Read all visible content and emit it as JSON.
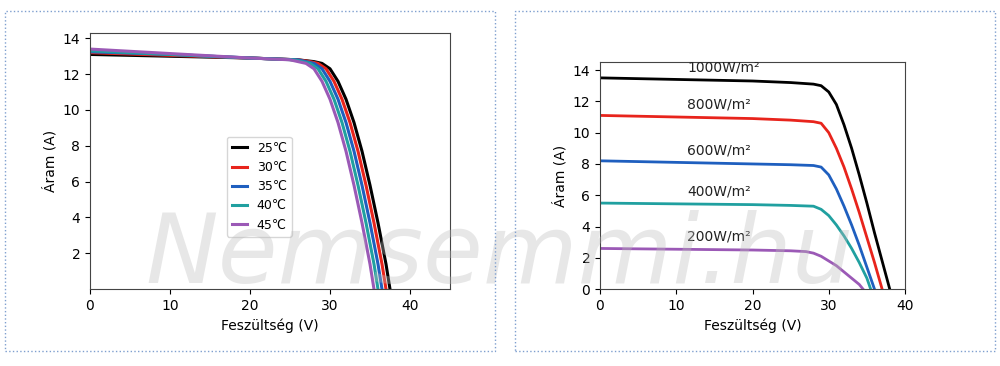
{
  "chart_data": [
    {
      "type": "line",
      "x_label": "Feszültség (V)",
      "y_label": "Áram (A)",
      "xlim": [
        0,
        45
      ],
      "ylim": [
        0,
        14.3
      ],
      "xticks": [
        0,
        10,
        20,
        30,
        40
      ],
      "yticks": [
        2,
        4,
        6,
        8,
        10,
        12,
        14
      ],
      "legend": "center",
      "series": [
        {
          "name": "25℃",
          "color": "#000000",
          "x": [
            0,
            10,
            20,
            26,
            28,
            29,
            30,
            31,
            32,
            33,
            34,
            35,
            36,
            37,
            37.5
          ],
          "values": [
            13.1,
            13.0,
            12.9,
            12.8,
            12.7,
            12.6,
            12.3,
            11.6,
            10.6,
            9.3,
            7.7,
            5.8,
            3.7,
            1.4,
            0
          ]
        },
        {
          "name": "30℃",
          "color": "#e8241c",
          "x": [
            0,
            10,
            20,
            26,
            27.5,
            28.5,
            29.5,
            30.5,
            31.5,
            32.5,
            33.5,
            34.5,
            35.5,
            36.5,
            37
          ],
          "values": [
            13.2,
            13.05,
            12.9,
            12.8,
            12.7,
            12.6,
            12.3,
            11.6,
            10.6,
            9.3,
            7.7,
            5.8,
            3.7,
            1.4,
            0
          ]
        },
        {
          "name": "35℃",
          "color": "#1f5fbf",
          "x": [
            0,
            10,
            20,
            26,
            27,
            28,
            29,
            30,
            31,
            32,
            33,
            34,
            35,
            36,
            36.5
          ],
          "values": [
            13.25,
            13.1,
            12.9,
            12.8,
            12.7,
            12.6,
            12.3,
            11.6,
            10.6,
            9.3,
            7.7,
            5.8,
            3.7,
            1.4,
            0
          ]
        },
        {
          "name": "40℃",
          "color": "#20a0a0",
          "x": [
            0,
            10,
            20,
            25.5,
            26.5,
            27.5,
            28.5,
            29.5,
            30.5,
            31.5,
            32.5,
            33.5,
            34.5,
            35.5,
            36
          ],
          "values": [
            13.3,
            13.1,
            12.9,
            12.8,
            12.7,
            12.6,
            12.3,
            11.6,
            10.6,
            9.3,
            7.7,
            5.8,
            3.7,
            1.4,
            0
          ]
        },
        {
          "name": "45℃",
          "color": "#9b59b6",
          "x": [
            0,
            10,
            20,
            25,
            26,
            27,
            28,
            29,
            30,
            31,
            32,
            33,
            34,
            35,
            35.5
          ],
          "values": [
            13.4,
            13.15,
            12.9,
            12.8,
            12.7,
            12.6,
            12.3,
            11.6,
            10.6,
            9.3,
            7.7,
            5.8,
            3.7,
            1.4,
            0
          ]
        }
      ]
    },
    {
      "type": "line",
      "x_label": "Feszültség (V)",
      "y_label": "Áram (A)",
      "xlim": [
        0,
        40
      ],
      "ylim": [
        0,
        14.5
      ],
      "xticks": [
        0,
        10,
        20,
        30,
        40
      ],
      "yticks": [
        0,
        2,
        4,
        6,
        8,
        10,
        12,
        14
      ],
      "series": [
        {
          "name": "1000W/m²",
          "color": "#000000",
          "x": [
            0,
            10,
            20,
            25,
            28,
            29,
            30,
            31,
            32,
            33,
            34,
            35,
            36,
            37,
            38
          ],
          "values": [
            13.5,
            13.4,
            13.3,
            13.2,
            13.1,
            13.0,
            12.6,
            11.8,
            10.5,
            9.0,
            7.3,
            5.5,
            3.6,
            1.8,
            0
          ]
        },
        {
          "name": "800W/m²",
          "color": "#e8241c",
          "x": [
            0,
            10,
            20,
            25,
            28,
            29,
            30,
            31,
            32,
            33,
            34,
            35,
            36,
            37
          ],
          "values": [
            11.1,
            11.0,
            10.9,
            10.8,
            10.7,
            10.6,
            10.0,
            9.0,
            7.8,
            6.4,
            4.9,
            3.3,
            1.7,
            0
          ]
        },
        {
          "name": "600W/m²",
          "color": "#1f5fbf",
          "x": [
            0,
            10,
            20,
            25,
            28,
            29,
            30,
            31,
            32,
            33,
            34,
            35,
            36
          ],
          "values": [
            8.2,
            8.1,
            8.0,
            7.95,
            7.9,
            7.8,
            7.3,
            6.4,
            5.3,
            4.1,
            2.8,
            1.4,
            0
          ]
        },
        {
          "name": "400W/m²",
          "color": "#20a0a0",
          "x": [
            0,
            10,
            20,
            25,
            28,
            29,
            30,
            31,
            32,
            33,
            34,
            35,
            35.5
          ],
          "values": [
            5.5,
            5.45,
            5.4,
            5.35,
            5.3,
            5.1,
            4.7,
            4.1,
            3.4,
            2.6,
            1.7,
            0.7,
            0
          ]
        },
        {
          "name": "200W/m²",
          "color": "#9b59b6",
          "x": [
            0,
            10,
            20,
            25,
            27,
            28,
            29,
            30,
            31,
            32,
            33,
            34,
            34.5
          ],
          "values": [
            2.6,
            2.55,
            2.5,
            2.45,
            2.4,
            2.3,
            2.1,
            1.8,
            1.5,
            1.1,
            0.7,
            0.3,
            0
          ]
        }
      ]
    }
  ],
  "watermark": "Nemsemmi.hu"
}
